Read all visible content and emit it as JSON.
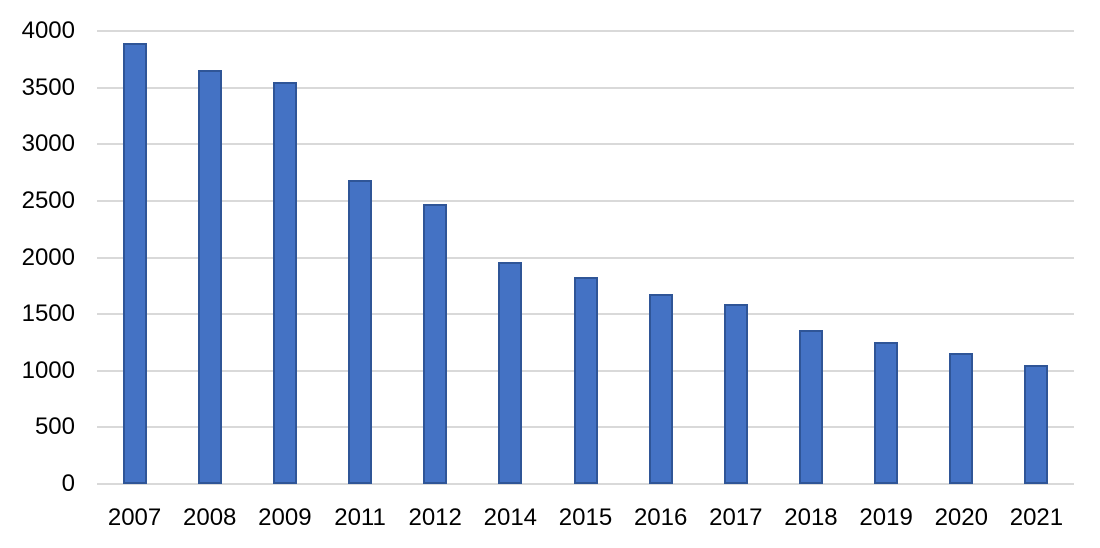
{
  "chart_data": {
    "type": "bar",
    "title": "",
    "xlabel": "",
    "ylabel": "",
    "categories": [
      "2007",
      "2008",
      "2009",
      "2011",
      "2012",
      "2014",
      "2015",
      "2016",
      "2017",
      "2018",
      "2019",
      "2020",
      "2021"
    ],
    "values": [
      3890,
      3660,
      3550,
      2680,
      2470,
      1960,
      1830,
      1680,
      1590,
      1360,
      1250,
      1160,
      1050
    ],
    "ylim": [
      0,
      4000
    ],
    "ytick_step": 500,
    "yticks": [
      "0",
      "500",
      "1000",
      "1500",
      "2000",
      "2500",
      "3000",
      "3500",
      "4000"
    ],
    "grid": true,
    "legend": false,
    "colors": {
      "bar_fill": "#4472C4",
      "bar_border": "#2F5597",
      "gridline": "#D9D9D9",
      "tick_text": "#000000",
      "background": "#FFFFFF"
    }
  }
}
